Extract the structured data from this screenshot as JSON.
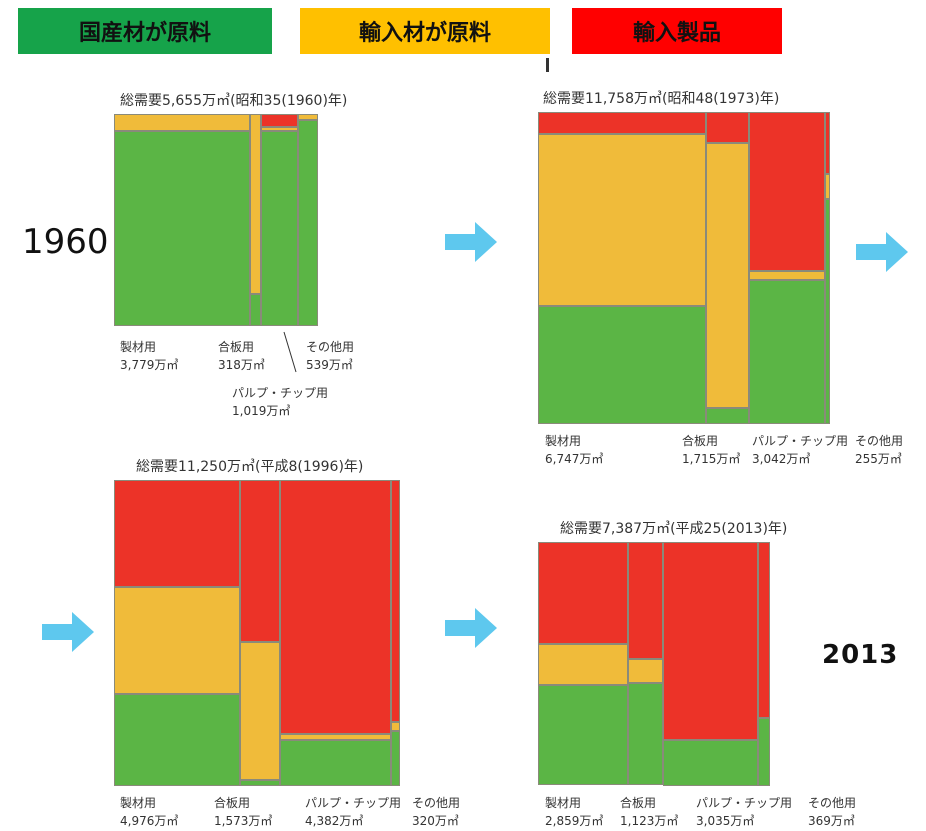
{
  "colors": {
    "domestic": "#5bb545",
    "imported_material": "#f0bb3a",
    "imported_product": "#ec3328",
    "legend_green": "#16a34a",
    "legend_yellow": "#ffc000",
    "legend_red": "#ff0000",
    "arrow": "#5ec8ee"
  },
  "legend": [
    {
      "label": "国産材が原料",
      "color": "#16a34a"
    },
    {
      "label": "輸入材が原料",
      "color": "#ffc000"
    },
    {
      "label": "輸入製品",
      "color": "#ff0000"
    }
  ],
  "year_labels": {
    "start": "1960",
    "end": "2013"
  },
  "chart_data": [
    {
      "type": "treemap",
      "title": "総需要5,655万㎥(昭和35(1960)年)",
      "total": 5655,
      "categories": [
        {
          "name": "製材用",
          "value_label": "3,779万㎥",
          "value": 3779,
          "shares": {
            "domestic": 0.92,
            "imported_material": 0.08,
            "imported_product": 0.0
          }
        },
        {
          "name": "合板用",
          "value_label": "318万㎥",
          "value": 318,
          "shares": {
            "domestic": 0.15,
            "imported_material": 0.85,
            "imported_product": 0.0
          }
        },
        {
          "name": "パルプ・チップ用",
          "value_label": "1,019万㎥",
          "value": 1019,
          "shares": {
            "domestic": 0.92,
            "imported_material": 0.02,
            "imported_product": 0.06
          }
        },
        {
          "name": "その他用",
          "value_label": "539万㎥",
          "value": 539,
          "shares": {
            "domestic": 0.97,
            "imported_material": 0.03,
            "imported_product": 0.0
          }
        }
      ]
    },
    {
      "type": "treemap",
      "title": "総需要11,758万㎥(昭和48(1973)年)",
      "total": 11758,
      "categories": [
        {
          "name": "製材用",
          "value_label": "6,747万㎥",
          "value": 6747,
          "shares": {
            "domestic": 0.38,
            "imported_material": 0.55,
            "imported_product": 0.07
          }
        },
        {
          "name": "合板用",
          "value_label": "1,715万㎥",
          "value": 1715,
          "shares": {
            "domestic": 0.05,
            "imported_material": 0.85,
            "imported_product": 0.1
          }
        },
        {
          "name": "パルプ・チップ用",
          "value_label": "3,042万㎥",
          "value": 3042,
          "shares": {
            "domestic": 0.46,
            "imported_material": 0.03,
            "imported_product": 0.51
          }
        },
        {
          "name": "その他用",
          "value_label": "255万㎥",
          "value": 255,
          "shares": {
            "domestic": 0.72,
            "imported_material": 0.08,
            "imported_product": 0.2
          }
        }
      ]
    },
    {
      "type": "treemap",
      "title": "総需要11,250万㎥(平成8(1996)年)",
      "total": 11250,
      "categories": [
        {
          "name": "製材用",
          "value_label": "4,976万㎥",
          "value": 4976,
          "shares": {
            "domestic": 0.3,
            "imported_material": 0.35,
            "imported_product": 0.35
          }
        },
        {
          "name": "合板用",
          "value_label": "1,573万㎥",
          "value": 1573,
          "shares": {
            "domestic": 0.02,
            "imported_material": 0.45,
            "imported_product": 0.53
          }
        },
        {
          "name": "パルプ・チップ用",
          "value_label": "4,382万㎥",
          "value": 4382,
          "shares": {
            "domestic": 0.15,
            "imported_material": 0.02,
            "imported_product": 0.83
          }
        },
        {
          "name": "その他用",
          "value_label": "320万㎥",
          "value": 320,
          "shares": {
            "domestic": 0.18,
            "imported_material": 0.03,
            "imported_product": 0.79
          }
        }
      ]
    },
    {
      "type": "treemap",
      "title": "総需要7,387万㎥(平成25(2013)年)",
      "total": 7387,
      "categories": [
        {
          "name": "製材用",
          "value_label": "2,859万㎥",
          "value": 2859,
          "shares": {
            "domestic": 0.41,
            "imported_material": 0.17,
            "imported_product": 0.42
          }
        },
        {
          "name": "合板用",
          "value_label": "1,123万㎥",
          "value": 1123,
          "shares": {
            "domestic": 0.42,
            "imported_material": 0.1,
            "imported_product": 0.48
          }
        },
        {
          "name": "パルプ・チップ用",
          "value_label": "3,035万㎥",
          "value": 3035,
          "shares": {
            "domestic": 0.19,
            "imported_material": 0.0,
            "imported_product": 0.81
          }
        },
        {
          "name": "その他用",
          "value_label": "369万㎥",
          "value": 369,
          "shares": {
            "domestic": 0.28,
            "imported_material": 0.0,
            "imported_product": 0.72
          }
        }
      ]
    }
  ]
}
